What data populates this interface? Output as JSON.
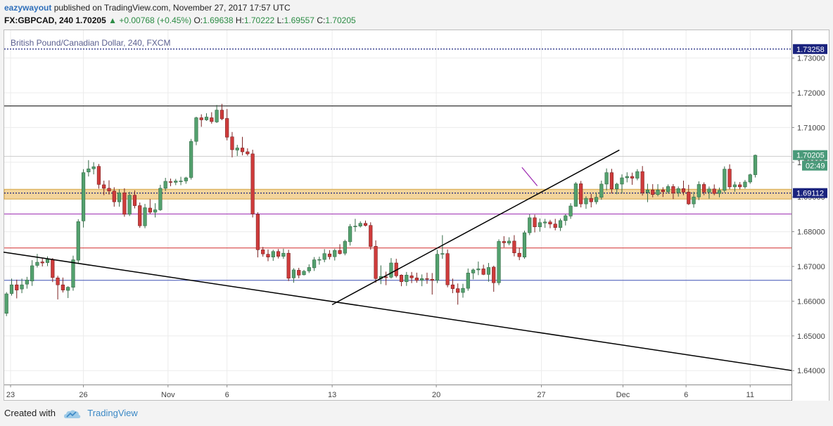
{
  "header": {
    "author": "eazywayout",
    "published": "published on TradingView.com, November 27, 2017 17:57 UTC",
    "symbol": "FX:GBPCAD, 240",
    "last": "1.70205",
    "change": "+0.00768 (+0.45%)",
    "o_label": "O:",
    "o_value": "1.69638",
    "h_label": "H:",
    "h_value": "1.70222",
    "l_label": "L:",
    "l_value": "1.69557",
    "c_label": "C:",
    "c_value": "1.70205"
  },
  "footer": {
    "created_with": "Created with",
    "brand": "TradingView"
  },
  "chart_data": {
    "type": "candlestick",
    "title": "British Pound/Canadian Dollar, 240, FXCM",
    "ylim": [
      1.636,
      1.738
    ],
    "y_ticks": [
      "1.73000",
      "1.72000",
      "1.71000",
      "1.70000",
      "1.69000",
      "1.68000",
      "1.67000",
      "1.66000",
      "1.65000",
      "1.64000"
    ],
    "x_ticks": [
      {
        "label": "23",
        "t": 0.8
      },
      {
        "label": "26",
        "t": 15.0
      },
      {
        "label": "Nov",
        "t": 31.5
      },
      {
        "label": "6",
        "t": 43.0
      },
      {
        "label": "13",
        "t": 63.5
      },
      {
        "label": "20",
        "t": 83.8
      },
      {
        "label": "27",
        "t": 104.3
      },
      {
        "label": "Dec",
        "t": 120.2
      },
      {
        "label": "6",
        "t": 132.5
      },
      {
        "label": "11",
        "t": 145.0
      }
    ],
    "price_labels": [
      {
        "value": 1.73258,
        "text": "1.73258",
        "color": "#1a237e",
        "style": "dotted"
      },
      {
        "value": 1.70205,
        "text": "1.70205",
        "color": "#4a9a7a",
        "sub": "02:49"
      },
      {
        "value": 1.69112,
        "text": "1.69112",
        "color": "#1a237e",
        "style": "dotted"
      }
    ],
    "horizontal_lines": [
      {
        "value": 1.7162,
        "color": "#000000"
      },
      {
        "value": 1.6851,
        "color": "#9c27b0"
      },
      {
        "value": 1.6753,
        "color": "#d32f2f"
      },
      {
        "value": 1.666,
        "color": "#3f51b5"
      },
      {
        "value": 1.7017,
        "color": "#cccccc"
      }
    ],
    "zone": {
      "from": 1.6898,
      "to": 1.6918,
      "color": "#f3d49b"
    },
    "trendlines": [
      {
        "from": [
          -1,
          1.6742
        ],
        "to": [
          156,
          1.6394
        ],
        "color": "#000000"
      },
      {
        "from": [
          63.5,
          1.659
        ],
        "to": [
          119.5,
          1.7035
        ],
        "color": "#000000"
      },
      {
        "from": [
          100.5,
          1.6985
        ],
        "to": [
          103.5,
          1.6932
        ],
        "color": "#9c27b0"
      }
    ],
    "candles": [
      [
        1.6565,
        1.6626,
        1.6557,
        1.6621
      ],
      [
        1.6622,
        1.6665,
        1.6616,
        1.6647
      ],
      [
        1.6647,
        1.6662,
        1.6608,
        1.6632
      ],
      [
        1.6635,
        1.6665,
        1.6623,
        1.6647
      ],
      [
        1.6649,
        1.667,
        1.6636,
        1.6661
      ],
      [
        1.6658,
        1.6718,
        1.6644,
        1.6702
      ],
      [
        1.6703,
        1.6736,
        1.6697,
        1.6712
      ],
      [
        1.6713,
        1.6723,
        1.67,
        1.671
      ],
      [
        1.6711,
        1.6729,
        1.6701,
        1.672
      ],
      [
        1.672,
        1.6724,
        1.6655,
        1.6668
      ],
      [
        1.6667,
        1.6673,
        1.6605,
        1.6647
      ],
      [
        1.6647,
        1.6668,
        1.6625,
        1.6632
      ],
      [
        1.6631,
        1.6643,
        1.6609,
        1.664
      ],
      [
        1.664,
        1.6731,
        1.663,
        1.6719
      ],
      [
        1.6718,
        1.6836,
        1.6708,
        1.6829
      ],
      [
        1.6831,
        1.698,
        1.6812,
        1.697
      ],
      [
        1.6972,
        1.7006,
        1.6959,
        1.6981
      ],
      [
        1.6981,
        1.7,
        1.6965,
        1.6987
      ],
      [
        1.6988,
        1.6995,
        1.6924,
        1.6936
      ],
      [
        1.6935,
        1.6947,
        1.6905,
        1.6925
      ],
      [
        1.6925,
        1.6948,
        1.6907,
        1.6917
      ],
      [
        1.6917,
        1.6928,
        1.6872,
        1.6886
      ],
      [
        1.6886,
        1.6922,
        1.6872,
        1.6912
      ],
      [
        1.6912,
        1.6925,
        1.6843,
        1.685
      ],
      [
        1.685,
        1.6915,
        1.6845,
        1.6905
      ],
      [
        1.6905,
        1.6919,
        1.6867,
        1.6875
      ],
      [
        1.6875,
        1.6884,
        1.6811,
        1.6817
      ],
      [
        1.6817,
        1.688,
        1.681,
        1.6869
      ],
      [
        1.6868,
        1.6894,
        1.6851,
        1.6856
      ],
      [
        1.6856,
        1.6882,
        1.6841,
        1.6863
      ],
      [
        1.6863,
        1.6935,
        1.686,
        1.6925
      ],
      [
        1.6925,
        1.6955,
        1.6917,
        1.6945
      ],
      [
        1.6944,
        1.6953,
        1.6931,
        1.6943
      ],
      [
        1.6942,
        1.6952,
        1.6934,
        1.6946
      ],
      [
        1.6946,
        1.6958,
        1.6934,
        1.6946
      ],
      [
        1.6946,
        1.6958,
        1.6938,
        1.6955
      ],
      [
        1.6956,
        1.7067,
        1.695,
        1.706
      ],
      [
        1.706,
        1.7131,
        1.7049,
        1.7128
      ],
      [
        1.7128,
        1.7138,
        1.7102,
        1.7122
      ],
      [
        1.7122,
        1.7141,
        1.7119,
        1.713
      ],
      [
        1.7128,
        1.7144,
        1.7111,
        1.7117
      ],
      [
        1.7116,
        1.7165,
        1.7113,
        1.715
      ],
      [
        1.715,
        1.7168,
        1.7121,
        1.7125
      ],
      [
        1.7126,
        1.7153,
        1.7063,
        1.7072
      ],
      [
        1.7073,
        1.7087,
        1.7014,
        1.7036
      ],
      [
        1.7035,
        1.705,
        1.7018,
        1.7041
      ],
      [
        1.7041,
        1.7073,
        1.702,
        1.703
      ],
      [
        1.703,
        1.704,
        1.7019,
        1.7024
      ],
      [
        1.7024,
        1.7036,
        1.6841,
        1.6851
      ],
      [
        1.685,
        1.6856,
        1.6726,
        1.6748
      ],
      [
        1.6748,
        1.6756,
        1.6728,
        1.6736
      ],
      [
        1.6735,
        1.6749,
        1.6715,
        1.6727
      ],
      [
        1.6727,
        1.6748,
        1.6716,
        1.6743
      ],
      [
        1.6743,
        1.675,
        1.6723,
        1.6729
      ],
      [
        1.6729,
        1.6751,
        1.6722,
        1.6738
      ],
      [
        1.6738,
        1.6748,
        1.6658,
        1.6666
      ],
      [
        1.6667,
        1.6695,
        1.6653,
        1.669
      ],
      [
        1.6689,
        1.6696,
        1.6666,
        1.6675
      ],
      [
        1.6676,
        1.669,
        1.6674,
        1.6686
      ],
      [
        1.6687,
        1.6706,
        1.6681,
        1.6697
      ],
      [
        1.6696,
        1.6727,
        1.6687,
        1.6719
      ],
      [
        1.6719,
        1.6728,
        1.6705,
        1.672
      ],
      [
        1.672,
        1.675,
        1.6712,
        1.6737
      ],
      [
        1.6736,
        1.6747,
        1.672,
        1.6728
      ],
      [
        1.6728,
        1.6751,
        1.6717,
        1.6746
      ],
      [
        1.6746,
        1.6764,
        1.6734,
        1.6737
      ],
      [
        1.6738,
        1.6777,
        1.6732,
        1.6772
      ],
      [
        1.6771,
        1.6822,
        1.676,
        1.6815
      ],
      [
        1.6815,
        1.6837,
        1.68,
        1.6816
      ],
      [
        1.6816,
        1.683,
        1.6812,
        1.6824
      ],
      [
        1.6824,
        1.6832,
        1.6815,
        1.6818
      ],
      [
        1.6818,
        1.6827,
        1.6748,
        1.6757
      ],
      [
        1.6758,
        1.6775,
        1.6653,
        1.6665
      ],
      [
        1.6665,
        1.6703,
        1.6649,
        1.6671
      ],
      [
        1.667,
        1.6685,
        1.6646,
        1.6669
      ],
      [
        1.6669,
        1.6724,
        1.6665,
        1.671
      ],
      [
        1.671,
        1.6722,
        1.6668,
        1.6673
      ],
      [
        1.6675,
        1.6677,
        1.6643,
        1.6656
      ],
      [
        1.6656,
        1.6684,
        1.6644,
        1.6675
      ],
      [
        1.6673,
        1.6684,
        1.6652,
        1.6667
      ],
      [
        1.6667,
        1.6682,
        1.6653,
        1.666
      ],
      [
        1.666,
        1.6677,
        1.6643,
        1.6665
      ],
      [
        1.6665,
        1.6682,
        1.665,
        1.6663
      ],
      [
        1.6663,
        1.6681,
        1.6619,
        1.666
      ],
      [
        1.666,
        1.6748,
        1.6652,
        1.6735
      ],
      [
        1.6735,
        1.679,
        1.6722,
        1.6737
      ],
      [
        1.6737,
        1.6749,
        1.664,
        1.6647
      ],
      [
        1.6647,
        1.6665,
        1.6623,
        1.6636
      ],
      [
        1.6636,
        1.6651,
        1.659,
        1.6625
      ],
      [
        1.6625,
        1.665,
        1.661,
        1.6637
      ],
      [
        1.6637,
        1.6694,
        1.663,
        1.6681
      ],
      [
        1.6681,
        1.6694,
        1.6663,
        1.669
      ],
      [
        1.669,
        1.6714,
        1.6675,
        1.6693
      ],
      [
        1.6693,
        1.6705,
        1.6675,
        1.6677
      ],
      [
        1.6677,
        1.671,
        1.6656,
        1.6697
      ],
      [
        1.6698,
        1.6702,
        1.6627,
        1.6653
      ],
      [
        1.6653,
        1.6778,
        1.6646,
        1.6772
      ],
      [
        1.6772,
        1.6787,
        1.6755,
        1.6768
      ],
      [
        1.6767,
        1.6784,
        1.6761,
        1.6773
      ],
      [
        1.6773,
        1.679,
        1.6729,
        1.6739
      ],
      [
        1.6738,
        1.6754,
        1.6718,
        1.6728
      ],
      [
        1.6727,
        1.6803,
        1.6722,
        1.6797
      ],
      [
        1.6797,
        1.685,
        1.679,
        1.684
      ],
      [
        1.684,
        1.6849,
        1.6798,
        1.6814
      ],
      [
        1.6814,
        1.6838,
        1.68,
        1.6826
      ],
      [
        1.6825,
        1.6837,
        1.6811,
        1.6828
      ],
      [
        1.6828,
        1.6834,
        1.681,
        1.6822
      ],
      [
        1.6822,
        1.6837,
        1.6804,
        1.6812
      ],
      [
        1.6812,
        1.6838,
        1.6802,
        1.6832
      ],
      [
        1.6832,
        1.685,
        1.6818,
        1.6846
      ],
      [
        1.6845,
        1.6882,
        1.6837,
        1.6874
      ],
      [
        1.6873,
        1.6943,
        1.6872,
        1.6938
      ],
      [
        1.6938,
        1.6946,
        1.687,
        1.688
      ],
      [
        1.688,
        1.6902,
        1.6866,
        1.6896
      ],
      [
        1.6896,
        1.6909,
        1.687,
        1.6886
      ],
      [
        1.6886,
        1.6913,
        1.6879,
        1.6899
      ],
      [
        1.6899,
        1.6947,
        1.6892,
        1.6937
      ],
      [
        1.6937,
        1.6982,
        1.6919,
        1.697
      ],
      [
        1.697,
        1.6981,
        1.691,
        1.6923
      ],
      [
        1.6923,
        1.6941,
        1.6908,
        1.6937
      ],
      [
        1.6937,
        1.6965,
        1.691,
        1.6955
      ],
      [
        1.6955,
        1.6971,
        1.6942,
        1.6959
      ],
      [
        1.6959,
        1.697,
        1.6935,
        1.6954
      ],
      [
        1.6954,
        1.698,
        1.6948,
        1.6973
      ],
      [
        1.6973,
        1.6989,
        1.6904,
        1.6912
      ],
      [
        1.6913,
        1.6938,
        1.6885,
        1.692
      ],
      [
        1.692,
        1.6937,
        1.6899,
        1.6907
      ],
      [
        1.6907,
        1.6937,
        1.6902,
        1.692
      ],
      [
        1.692,
        1.6928,
        1.69,
        1.6915
      ],
      [
        1.6915,
        1.6936,
        1.691,
        1.693
      ],
      [
        1.693,
        1.6937,
        1.6894,
        1.6911
      ],
      [
        1.6912,
        1.693,
        1.6901,
        1.6924
      ],
      [
        1.6924,
        1.6947,
        1.6905,
        1.6914
      ],
      [
        1.6914,
        1.6935,
        1.6877,
        1.688
      ],
      [
        1.688,
        1.6915,
        1.6869,
        1.69
      ],
      [
        1.69,
        1.6945,
        1.6891,
        1.6936
      ],
      [
        1.6936,
        1.6942,
        1.6905,
        1.6914
      ],
      [
        1.6914,
        1.693,
        1.6895,
        1.6923
      ],
      [
        1.6923,
        1.6936,
        1.6905,
        1.691
      ],
      [
        1.691,
        1.6927,
        1.6899,
        1.6919
      ],
      [
        1.6919,
        1.6988,
        1.6913,
        1.698
      ],
      [
        1.698,
        1.6994,
        1.6922,
        1.6929
      ],
      [
        1.6929,
        1.6944,
        1.6915,
        1.6935
      ],
      [
        1.6935,
        1.6943,
        1.6922,
        1.6929
      ],
      [
        1.6929,
        1.6949,
        1.6924,
        1.6943
      ],
      [
        1.6943,
        1.6967,
        1.6938,
        1.6964
      ],
      [
        1.6964,
        1.7022,
        1.6956,
        1.702
      ]
    ]
  }
}
